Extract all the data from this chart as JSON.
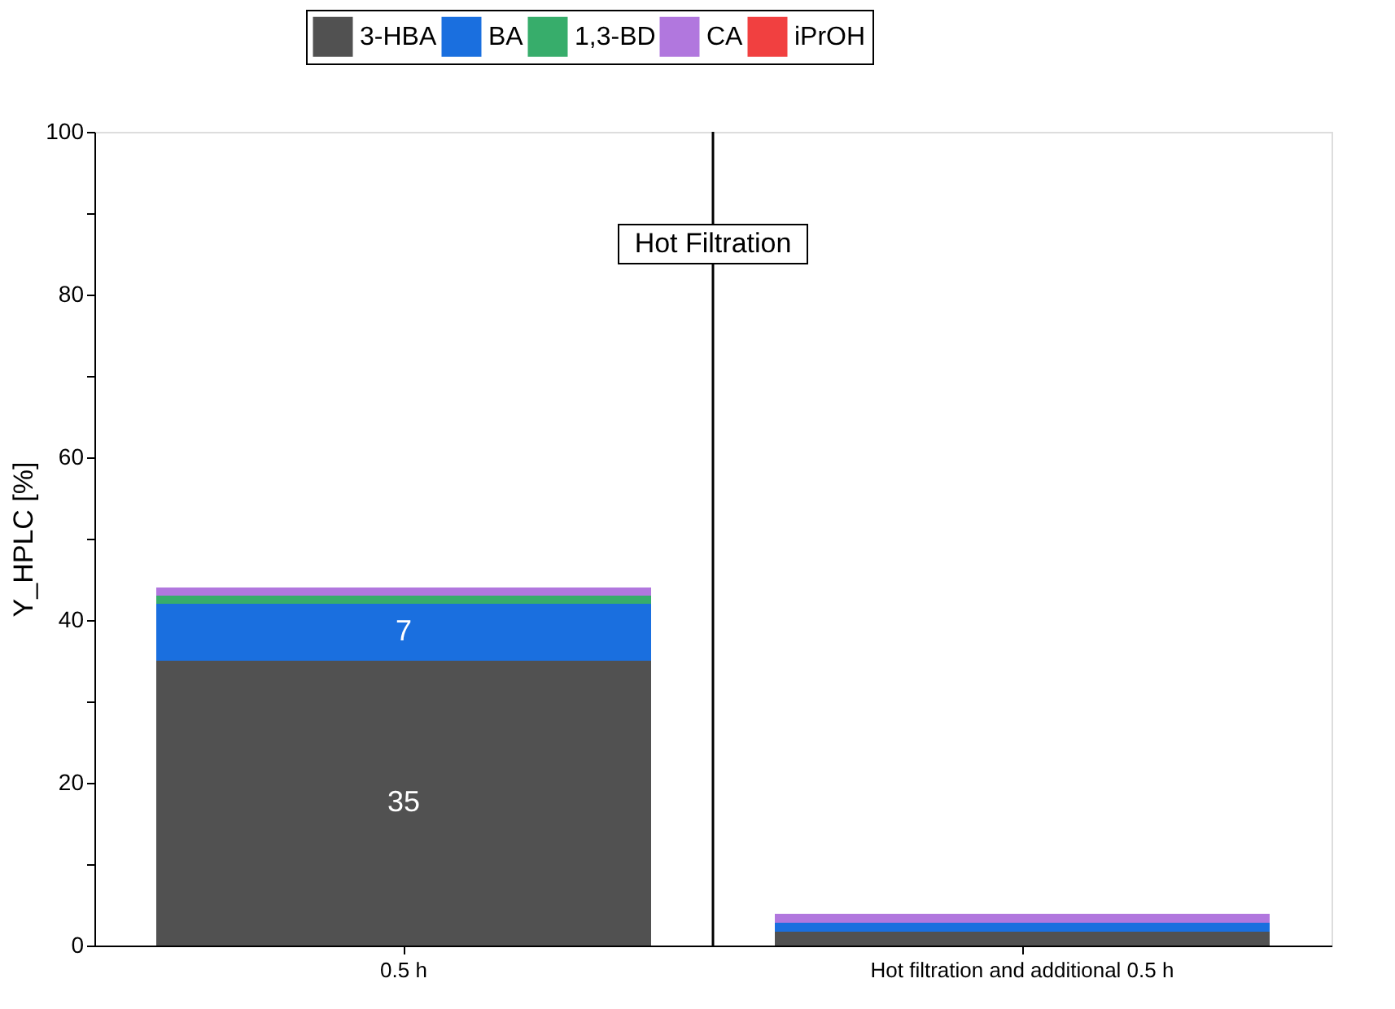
{
  "chart_data": {
    "type": "bar",
    "stacked": true,
    "categories": [
      "0.5 h",
      "Hot filtration and additional 0.5 h"
    ],
    "series": [
      {
        "name": "3-HBA",
        "color": "#515151",
        "values": [
          35,
          1.7
        ],
        "value_labels": [
          "35",
          null
        ]
      },
      {
        "name": "BA",
        "color": "#1a6fdf",
        "values": [
          7,
          1.1
        ],
        "value_labels": [
          "7",
          null
        ]
      },
      {
        "name": "1,3-BD",
        "color": "#37ad6b",
        "values": [
          1,
          0
        ]
      },
      {
        "name": "CA",
        "color": "#b177de",
        "values": [
          1,
          1.1
        ]
      },
      {
        "name": "iPrOH",
        "color": "#f14040",
        "values": [
          0,
          0
        ]
      }
    ],
    "ylabel": "Y_HPLC [%]",
    "ylim": [
      0,
      100
    ],
    "yticks": [
      0,
      {
        "value": 10,
        "label": null
      },
      20,
      {
        "value": 30,
        "label": null
      },
      40,
      {
        "value": 50,
        "label": null
      },
      60,
      {
        "value": 70,
        "label": null
      },
      80,
      {
        "value": 90,
        "label": null
      },
      100
    ],
    "annotations": [
      "Hot Filtration"
    ],
    "legend": "top",
    "grid": false
  }
}
